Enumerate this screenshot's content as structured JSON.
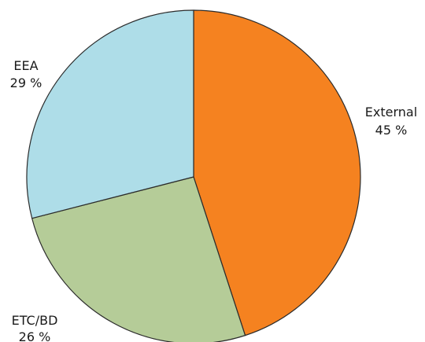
{
  "chart_data": {
    "type": "pie",
    "start_angle_deg": 0,
    "direction": "clockwise",
    "slices": [
      {
        "label": "External",
        "value": 45,
        "value_text": "45 %",
        "color": "#f58220"
      },
      {
        "label": "ETC/BD",
        "value": 26,
        "value_text": "26 %",
        "color": "#b5cc98"
      },
      {
        "label": "EEA",
        "value": 29,
        "value_text": "29 %",
        "color": "#aedde8"
      }
    ],
    "edge_color": "#2b2b2b"
  }
}
